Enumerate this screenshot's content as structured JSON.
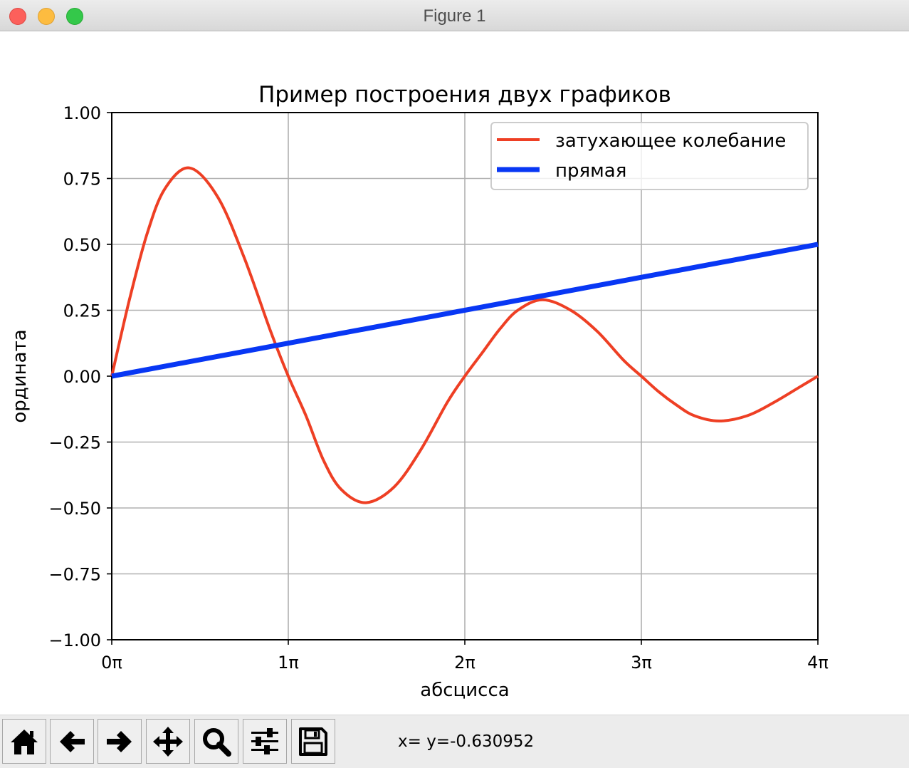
{
  "window": {
    "title": "Figure 1"
  },
  "toolbar": {
    "buttons": [
      "home-icon",
      "back-arrow-icon",
      "forward-arrow-icon",
      "pan-icon",
      "zoom-icon",
      "subplots-icon",
      "save-icon"
    ],
    "coords": "x= y=-0.630952"
  },
  "chart_data": {
    "type": "line",
    "title": "Пример построения двух графиков",
    "xlabel": "абсцисса",
    "ylabel": "ордината",
    "xlim": [
      0,
      4
    ],
    "ylim": [
      -1,
      1
    ],
    "x_unit": "π",
    "xticks": [
      "0π",
      "1π",
      "2π",
      "3π",
      "4π"
    ],
    "yticks": [
      "−1.00",
      "−0.75",
      "−0.50",
      "−0.25",
      "0.00",
      "0.25",
      "0.50",
      "0.75",
      "1.00"
    ],
    "grid": true,
    "legend": "top-right",
    "series": [
      {
        "name": "затухающее колебание",
        "color": "#ee3f24",
        "x": [
          0,
          0.1,
          0.2,
          0.3,
          0.44,
          0.6,
          0.75,
          0.9,
          1.0,
          1.1,
          1.2,
          1.3,
          1.44,
          1.6,
          1.75,
          1.9,
          2.0,
          2.1,
          2.2,
          2.3,
          2.44,
          2.6,
          2.75,
          2.9,
          3.0,
          3.1,
          3.2,
          3.3,
          3.44,
          3.6,
          3.75,
          3.9,
          4.0
        ],
        "y": [
          0,
          0.29,
          0.54,
          0.71,
          0.79,
          0.68,
          0.45,
          0.17,
          0,
          -0.15,
          -0.32,
          -0.43,
          -0.48,
          -0.42,
          -0.28,
          -0.1,
          0,
          0.09,
          0.18,
          0.25,
          0.29,
          0.25,
          0.17,
          0.06,
          0,
          -0.06,
          -0.11,
          -0.15,
          -0.17,
          -0.15,
          -0.1,
          -0.04,
          0
        ]
      },
      {
        "name": "прямая",
        "color": "#0837f4",
        "x": [
          0,
          4
        ],
        "y": [
          0,
          0.5
        ]
      }
    ]
  }
}
